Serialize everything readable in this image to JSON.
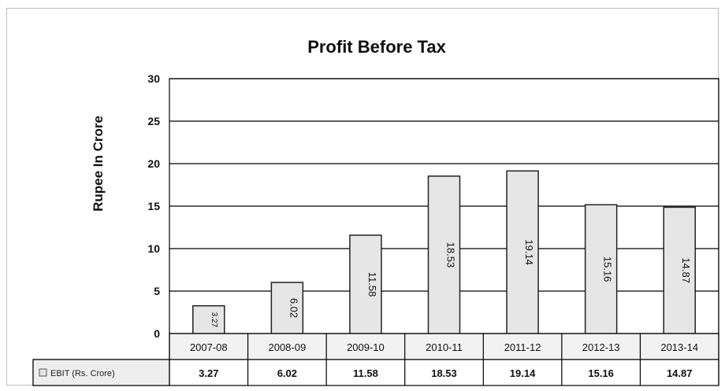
{
  "chart_data": {
    "type": "bar",
    "title": "Profit Before Tax",
    "ylabel": "Rupee In Crore",
    "xlabel": "",
    "ylim": [
      0,
      30
    ],
    "yticks": [
      0,
      5,
      10,
      15,
      20,
      25,
      30
    ],
    "grid": true,
    "categories": [
      "2007-08",
      "2008-09",
      "2009-10",
      "2010-11",
      "2011-12",
      "2012-13",
      "2013-14"
    ],
    "series": [
      {
        "name": "EBIT (Rs. Crore)",
        "values": [
          3.27,
          6.02,
          11.58,
          18.53,
          19.14,
          15.16,
          14.87
        ],
        "labels": [
          "3.27",
          "6.02",
          "11.58",
          "18.53",
          "19.14",
          "15.16",
          "14.87"
        ]
      }
    ],
    "data_table": true,
    "colors": {
      "bar_fill": "#e6e6e6",
      "bar_stroke": "#222222",
      "grid": "#000000",
      "table_header_fill": "#f2f2f2"
    }
  }
}
